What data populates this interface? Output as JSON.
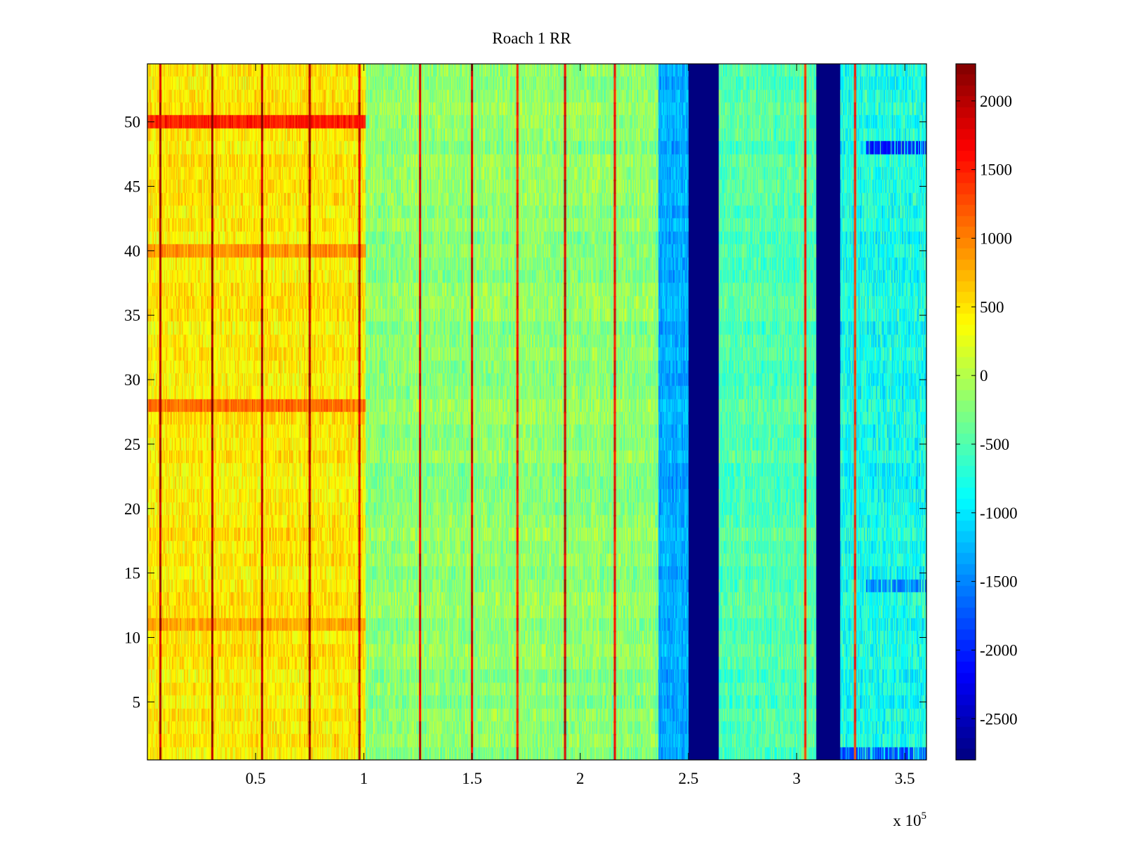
{
  "chart_data": {
    "type": "heatmap",
    "title": "Roach 1 RR",
    "xlabel": "",
    "ylabel": "",
    "x_range": [
      0,
      360000
    ],
    "y_range": [
      0.5,
      54.5
    ],
    "x_ticks": [
      50000,
      100000,
      150000,
      200000,
      250000,
      300000,
      350000
    ],
    "x_tick_labels": [
      "0.5",
      "1",
      "1.5",
      "2",
      "2.5",
      "3",
      "3.5"
    ],
    "x_exponent_label": {
      "base": "x 10",
      "exponent": "5"
    },
    "y_ticks": [
      5,
      10,
      15,
      20,
      25,
      30,
      35,
      40,
      45,
      50
    ],
    "y_tick_labels": [
      "5",
      "10",
      "15",
      "20",
      "25",
      "30",
      "35",
      "40",
      "45",
      "50"
    ],
    "rows": 54,
    "colormap": "jet",
    "color_range": [
      -2800,
      2270
    ],
    "colorbar_ticks": [
      2000,
      1500,
      1000,
      500,
      0,
      -500,
      -1000,
      -1500,
      -2000,
      -2500
    ],
    "colorbar_tick_labels": [
      "2000",
      "1500",
      "1000",
      "500",
      "0",
      "-500",
      "-1000",
      "-1500",
      "-2000",
      "-2500"
    ],
    "regions": [
      {
        "x_start": 0,
        "x_end": 101000,
        "mean_value": 450,
        "spread": 300
      },
      {
        "x_start": 101000,
        "x_end": 236000,
        "mean_value": -200,
        "spread": 300
      },
      {
        "x_start": 236000,
        "x_end": 250000,
        "mean_value": -1300,
        "spread": 250
      },
      {
        "x_start": 250000,
        "x_end": 264000,
        "mean_value": -2800,
        "spread": 0
      },
      {
        "x_start": 264000,
        "x_end": 309000,
        "mean_value": -500,
        "spread": 300
      },
      {
        "x_start": 309000,
        "x_end": 320000,
        "mean_value": -2800,
        "spread": 0
      },
      {
        "x_start": 320000,
        "x_end": 360000,
        "mean_value": -800,
        "spread": 400
      }
    ],
    "hot_rows": [
      {
        "row": 50,
        "x_start": 0,
        "x_end": 101000,
        "mean_value": 1500
      },
      {
        "row": 28,
        "x_start": 0,
        "x_end": 101000,
        "mean_value": 1100
      },
      {
        "row": 40,
        "x_start": 0,
        "x_end": 101000,
        "mean_value": 900
      },
      {
        "row": 11,
        "x_start": 0,
        "x_end": 101000,
        "mean_value": 800
      }
    ],
    "cold_rows": [
      {
        "row": 48,
        "x_start": 332000,
        "x_end": 360000,
        "mean_value": -2100
      },
      {
        "row": 14,
        "x_start": 332000,
        "x_end": 360000,
        "mean_value": -1500
      },
      {
        "row": 1,
        "x_start": 320000,
        "x_end": 360000,
        "mean_value": -1800
      }
    ],
    "stripes": [
      {
        "x": 6000,
        "value": 2000
      },
      {
        "x": 30000,
        "value": 2100
      },
      {
        "x": 53000,
        "value": 2000
      },
      {
        "x": 75000,
        "value": 2100
      },
      {
        "x": 98000,
        "value": 1900
      },
      {
        "x": 126000,
        "value": 1800
      },
      {
        "x": 150000,
        "value": 1800
      },
      {
        "x": 171000,
        "value": 1600
      },
      {
        "x": 193000,
        "value": 1900
      },
      {
        "x": 216000,
        "value": 1700
      },
      {
        "x": 304000,
        "value": 1500
      },
      {
        "x": 327000,
        "value": 1400
      }
    ]
  }
}
